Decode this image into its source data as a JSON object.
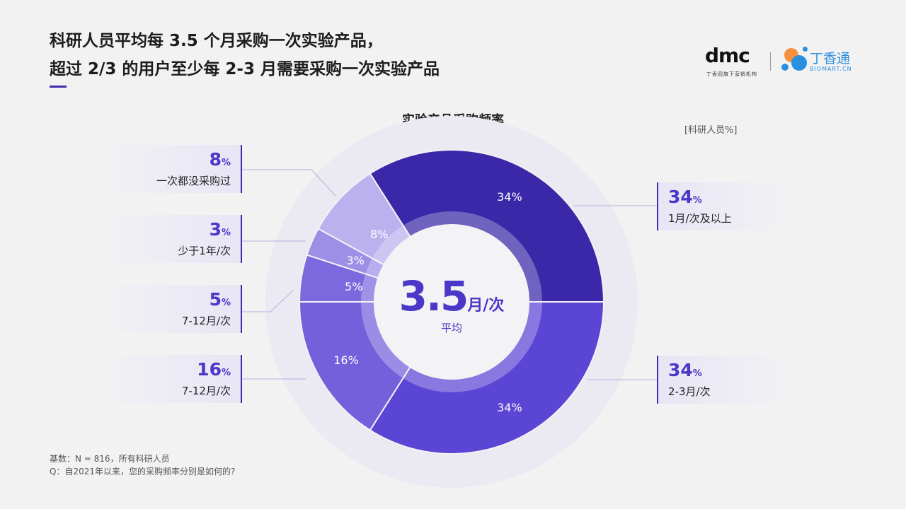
{
  "header": {
    "title_line1": "科研人员平均每 3.5 个月采购一次实验产品，",
    "title_line2": "超过 2/3 的用户至少每 2-3 月需要采购一次实验产品"
  },
  "logos": {
    "dmc": "dmc",
    "dmc_sub": "丁香园旗下营销机构",
    "biomart_name": "丁香通",
    "biomart_sub": "BIOMART.CN"
  },
  "colors": {
    "accent": "#4b37c8",
    "dark": "#3a28a8",
    "orange": "#f5913c",
    "blue": "#2b8fe0"
  },
  "chart_data": {
    "type": "pie",
    "variant": "donut",
    "title": "实验产品采购频率",
    "unit_label": "[科研人员%]",
    "slices": [
      {
        "label": "1月/次及以上",
        "value": 34,
        "display": "34%",
        "color": "#3a28a8"
      },
      {
        "label": "2-3月/次",
        "value": 34,
        "display": "34%",
        "color": "#5a45d4"
      },
      {
        "label": "7-12月/次",
        "value": 16,
        "display": "16%",
        "color": "#7560db"
      },
      {
        "label": "7-12月/次",
        "value": 5,
        "display": "5%",
        "color": "#7d69de"
      },
      {
        "label": "少于1年/次",
        "value": 3,
        "display": "3%",
        "color": "#9d8fe6"
      },
      {
        "label": "一次都没采购过",
        "value": 8,
        "display": "8%",
        "color": "#bbb1ee"
      }
    ],
    "center": {
      "value": "3.5",
      "unit": "月/次",
      "caption": "平均"
    }
  },
  "footnotes": {
    "base": "基数：N = 816，所有科研人员",
    "question": "Q：自2021年以来，您的采购频率分别是如何的?"
  }
}
